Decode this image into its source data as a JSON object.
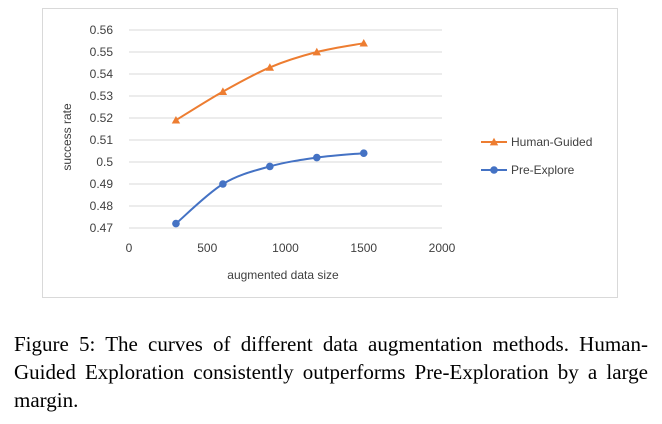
{
  "chart_data": {
    "type": "line",
    "title": "",
    "xlabel": "augmented data size",
    "ylabel": "success rate",
    "xlim": [
      0,
      2000
    ],
    "ylim": [
      0.47,
      0.56
    ],
    "x_ticks": [
      "0",
      "500",
      "1000",
      "1500",
      "2000"
    ],
    "y_ticks": [
      "0.56",
      "0.55",
      "0.54",
      "0.53",
      "0.52",
      "0.51",
      "0.5",
      "0.49",
      "0.48",
      "0.47"
    ],
    "grid": "horizontal",
    "legend_position": "right",
    "series": [
      {
        "name": "Human-Guided",
        "color": "#ED7D31",
        "marker": "triangle",
        "x": [
          300,
          600,
          900,
          1200,
          1500
        ],
        "y": [
          0.519,
          0.532,
          0.543,
          0.55,
          0.554
        ]
      },
      {
        "name": "Pre-Explore",
        "color": "#4472C4",
        "marker": "circle",
        "x": [
          300,
          600,
          900,
          1200,
          1500
        ],
        "y": [
          0.472,
          0.49,
          0.498,
          0.502,
          0.504
        ]
      }
    ]
  },
  "caption": "Figure 5: The curves of different data augmentation methods. Human-Guided Exploration consistently outperforms Pre-Exploration by a large margin."
}
